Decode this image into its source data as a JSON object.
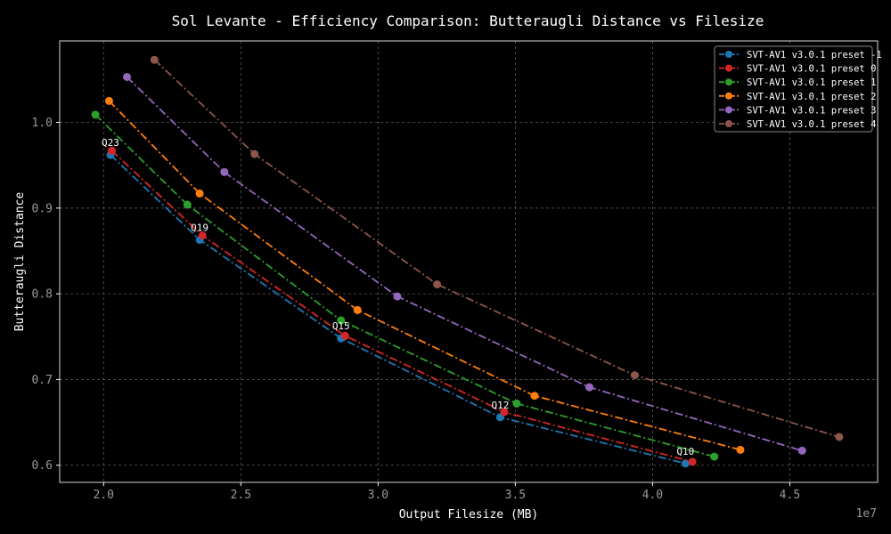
{
  "chart_data": {
    "type": "line",
    "title": "Sol Levante - Efficiency Comparison: Butteraugli Distance vs Filesize",
    "xlabel": "Output Filesize (MB)",
    "ylabel": "Butteraugli Distance",
    "x_offset_label": "1e7",
    "xlim": [
      1.84,
      4.82
    ],
    "ylim": [
      0.58,
      1.095
    ],
    "xticks": [
      2.0,
      2.5,
      3.0,
      3.5,
      4.0,
      4.5
    ],
    "xtick_labels": [
      "2.0",
      "2.5",
      "3.0",
      "3.5",
      "4.0",
      "4.5"
    ],
    "yticks": [
      0.6,
      0.7,
      0.8,
      0.9,
      1.0
    ],
    "ytick_labels": [
      "0.6",
      "0.7",
      "0.8",
      "0.9",
      "1.0"
    ],
    "grid": true,
    "legend_position": "top-right",
    "series": [
      {
        "name": "SVT-AV1 v3.0.1 preset -1",
        "color": "#1f77b4",
        "points": [
          [
            2.025,
            0.962
          ],
          [
            2.35,
            0.863
          ],
          [
            2.865,
            0.748
          ],
          [
            3.445,
            0.656
          ],
          [
            4.12,
            0.602
          ]
        ]
      },
      {
        "name": "SVT-AV1 v3.0.1 preset 0",
        "color": "#d62728",
        "points": [
          [
            2.03,
            0.967
          ],
          [
            2.36,
            0.868
          ],
          [
            2.88,
            0.751
          ],
          [
            3.46,
            0.662
          ],
          [
            4.145,
            0.604
          ]
        ]
      },
      {
        "name": "SVT-AV1 v3.0.1 preset 1",
        "color": "#2ca02c",
        "points": [
          [
            1.97,
            1.009
          ],
          [
            2.305,
            0.904
          ],
          [
            2.865,
            0.769
          ],
          [
            3.505,
            0.672
          ],
          [
            4.225,
            0.61
          ]
        ]
      },
      {
        "name": "SVT-AV1 v3.0.1 preset 2",
        "color": "#ff7f0e",
        "points": [
          [
            2.02,
            1.025
          ],
          [
            2.35,
            0.917
          ],
          [
            2.925,
            0.781
          ],
          [
            3.57,
            0.681
          ],
          [
            4.32,
            0.618
          ]
        ]
      },
      {
        "name": "SVT-AV1 v3.0.1 preset 3",
        "color": "#9467bd",
        "points": [
          [
            2.085,
            1.053
          ],
          [
            2.44,
            0.942
          ],
          [
            3.07,
            0.797
          ],
          [
            3.77,
            0.691
          ],
          [
            4.545,
            0.617
          ]
        ]
      },
      {
        "name": "SVT-AV1 v3.0.1 preset 4",
        "color": "#8c564b",
        "points": [
          [
            2.185,
            1.073
          ],
          [
            2.55,
            0.963
          ],
          [
            3.215,
            0.811
          ],
          [
            3.935,
            0.705
          ],
          [
            4.68,
            0.633
          ]
        ]
      }
    ],
    "annotations": [
      {
        "text": "Q23",
        "x": 2.025,
        "y": 0.962
      },
      {
        "text": "Q19",
        "x": 2.35,
        "y": 0.863
      },
      {
        "text": "Q15",
        "x": 2.865,
        "y": 0.748
      },
      {
        "text": "Q12",
        "x": 3.445,
        "y": 0.656
      },
      {
        "text": "Q10",
        "x": 4.12,
        "y": 0.602
      }
    ]
  }
}
